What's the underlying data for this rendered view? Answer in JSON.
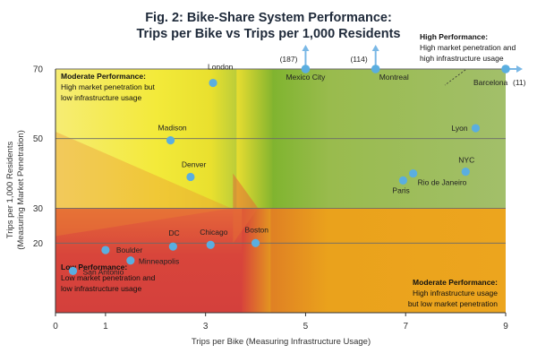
{
  "chart_data": {
    "type": "scatter",
    "title": [
      "Fig. 2: Bike-Share System Performance:",
      "Trips per Bike vs Trips per 1,000 Residents"
    ],
    "xlabel": "Trips per Bike (Measuring Infrastructure Usage)",
    "ylabel": "Trips per 1,000 Residents",
    "ylabel_sub": "(Measuring Market Penetration)",
    "xlim": [
      0,
      9
    ],
    "ylim": [
      0,
      70
    ],
    "xticks": [
      0,
      1,
      3,
      5,
      7,
      9
    ],
    "yticks": [
      20,
      30,
      50,
      70
    ],
    "ygrid": [
      20,
      30,
      50,
      70
    ],
    "points": [
      {
        "name": "London",
        "x": 3.15,
        "y": 66
      },
      {
        "name": "Madison",
        "x": 2.3,
        "y": 49.5
      },
      {
        "name": "Denver",
        "x": 2.7,
        "y": 39
      },
      {
        "name": "Lyon",
        "x": 8.4,
        "y": 53
      },
      {
        "name": "NYC",
        "x": 8.2,
        "y": 40.5
      },
      {
        "name": "Rio de Janeiro",
        "x": 7.15,
        "y": 40
      },
      {
        "name": "Paris",
        "x": 6.95,
        "y": 38
      },
      {
        "name": "Boston",
        "x": 4.0,
        "y": 20
      },
      {
        "name": "Chicago",
        "x": 3.1,
        "y": 19.5
      },
      {
        "name": "DC",
        "x": 2.35,
        "y": 19
      },
      {
        "name": "Boulder",
        "x": 1.0,
        "y": 18
      },
      {
        "name": "Minneapolis",
        "x": 1.5,
        "y": 15
      },
      {
        "name": "San Antonio",
        "x": 0.35,
        "y": 12
      }
    ],
    "offscale_points": [
      {
        "name": "Mexico City",
        "value": "(187)",
        "x": 5.0,
        "y": 70,
        "direction": "up"
      },
      {
        "name": "Montreal",
        "value": "(114)",
        "x": 6.4,
        "y": 70,
        "direction": "up"
      },
      {
        "name": "Barcelona",
        "value": "(11)",
        "x": 9.0,
        "y": 70,
        "direction": "right"
      }
    ],
    "zones": {
      "top_left": {
        "title": "Moderate Performance:",
        "lines": [
          "High market penetration but",
          "low infrastructure usage"
        ]
      },
      "top_right": {
        "title": "High Performance:",
        "lines": [
          "High market penetration and",
          "high infrastructure usage"
        ]
      },
      "bottom_left": {
        "title": "Low Performance:",
        "lines": [
          "Low market penetration and",
          "low infrastructure usage"
        ]
      },
      "bottom_right": {
        "title": "Moderate Performance:",
        "lines": [
          "High infrastructure usage",
          "but low market penetration"
        ]
      }
    },
    "colors": {
      "yellow": "#f3ea3a",
      "green": "#9dbb4e",
      "red": "#d8453b",
      "orange": "#eaa21c",
      "point": "#5aaee0",
      "arrow": "#7ab8e6",
      "grid": "#6a6a6a",
      "title": "#1f2a3a"
    }
  }
}
